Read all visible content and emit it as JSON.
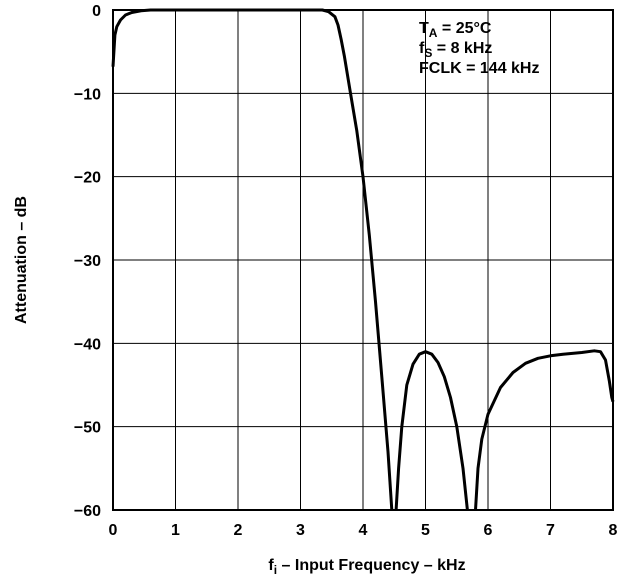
{
  "chart_data": {
    "type": "line",
    "xlabel": {
      "main": "f",
      "sub": "i",
      "rest": " – Input Frequency – kHz"
    },
    "ylabel": "Attenuation – dB",
    "xlim": [
      0,
      8
    ],
    "ylim": [
      -60,
      0
    ],
    "x_ticks": [
      "0",
      "1",
      "2",
      "3",
      "4",
      "5",
      "6",
      "7",
      "8"
    ],
    "y_ticks": [
      "0",
      "−10",
      "−20",
      "−30",
      "−40",
      "−50",
      "−60"
    ],
    "grid": true,
    "annotations": [
      {
        "main": "T",
        "sub": "A",
        "rest": " = 25°C"
      },
      {
        "main": "f",
        "sub": "S",
        "rest": " = 8 kHz"
      },
      {
        "main": "FCLK = 144 kHz",
        "sub": "",
        "rest": ""
      }
    ],
    "series": [
      {
        "segments": [
          [
            [
              0.0,
              -6.8
            ],
            [
              0.03,
              -3.0
            ],
            [
              0.06,
              -2.0
            ],
            [
              0.12,
              -1.2
            ],
            [
              0.2,
              -0.6
            ],
            [
              0.3,
              -0.3
            ],
            [
              0.45,
              -0.1
            ],
            [
              0.6,
              0.0
            ],
            [
              1.0,
              0.0
            ],
            [
              2.0,
              0.0
            ],
            [
              3.0,
              0.0
            ],
            [
              3.35,
              0.0
            ],
            [
              3.45,
              -0.2
            ],
            [
              3.55,
              -0.8
            ],
            [
              3.6,
              -1.8
            ],
            [
              3.65,
              -3.5
            ],
            [
              3.7,
              -5.5
            ],
            [
              3.8,
              -10.0
            ],
            [
              3.9,
              -14.5
            ],
            [
              4.0,
              -20.0
            ],
            [
              4.1,
              -27.0
            ],
            [
              4.2,
              -35.0
            ],
            [
              4.3,
              -44.0
            ],
            [
              4.4,
              -53.0
            ],
            [
              4.46,
              -60.0
            ]
          ],
          [
            [
              4.53,
              -60.0
            ],
            [
              4.57,
              -55.0
            ],
            [
              4.62,
              -50.0
            ],
            [
              4.7,
              -45.0
            ],
            [
              4.8,
              -42.5
            ],
            [
              4.9,
              -41.3
            ],
            [
              5.0,
              -41.0
            ],
            [
              5.1,
              -41.3
            ],
            [
              5.2,
              -42.3
            ],
            [
              5.3,
              -44.0
            ],
            [
              5.4,
              -46.5
            ],
            [
              5.5,
              -50.0
            ],
            [
              5.6,
              -55.0
            ],
            [
              5.67,
              -60.0
            ]
          ],
          [
            [
              5.8,
              -60.0
            ],
            [
              5.84,
              -55.0
            ],
            [
              5.9,
              -51.5
            ],
            [
              6.0,
              -48.5
            ],
            [
              6.2,
              -45.3
            ],
            [
              6.4,
              -43.5
            ],
            [
              6.6,
              -42.4
            ],
            [
              6.8,
              -41.8
            ],
            [
              7.0,
              -41.5
            ],
            [
              7.2,
              -41.3
            ],
            [
              7.5,
              -41.1
            ],
            [
              7.7,
              -40.9
            ],
            [
              7.8,
              -41.0
            ],
            [
              7.88,
              -42.0
            ],
            [
              7.94,
              -44.5
            ],
            [
              7.98,
              -46.5
            ],
            [
              8.0,
              -47.0
            ]
          ]
        ]
      }
    ]
  }
}
